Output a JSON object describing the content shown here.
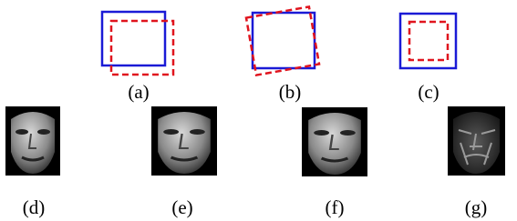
{
  "panels": [
    {
      "label": "(a)"
    },
    {
      "label": "(b)"
    },
    {
      "label": "(c)"
    },
    {
      "label": "(d)"
    },
    {
      "label": "(e)"
    },
    {
      "label": "(f)"
    },
    {
      "label": "(g)"
    }
  ]
}
